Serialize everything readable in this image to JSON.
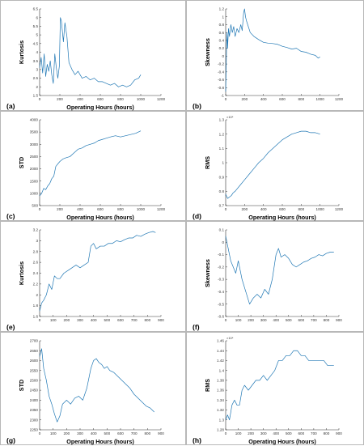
{
  "colors": {
    "line": "#1f77b4",
    "axis": "#333333",
    "border": "#b8b8b8"
  },
  "chart_data": [
    {
      "id": "a",
      "panel_label": "(a)",
      "type": "line",
      "xlabel": "Operating Hours (hours)",
      "ylabel": "Kurtosis",
      "xlim": [
        0,
        1200
      ],
      "ylim": [
        1.5,
        6.5
      ],
      "xticks": [
        "0",
        "200",
        "400",
        "600",
        "800",
        "1000",
        "1200"
      ],
      "yticks": [
        "1.5",
        "2",
        "2.5",
        "3",
        "3.5",
        "4",
        "4.5",
        "5",
        "5.5",
        "6",
        "6.5"
      ],
      "multiplier": "",
      "series": [
        {
          "x": [
            0,
            15,
            30,
            45,
            60,
            75,
            90,
            105,
            120,
            135,
            150,
            165,
            180,
            195,
            205,
            215,
            225,
            235,
            250,
            270,
            290,
            320,
            350,
            380,
            420,
            460,
            500,
            540,
            580,
            620,
            660,
            700,
            740,
            780,
            820,
            860,
            900,
            940,
            980,
            1000
          ],
          "values": [
            3.1,
            3.7,
            2.8,
            3.9,
            2.6,
            3.3,
            2.9,
            3.5,
            2.7,
            2.2,
            3.9,
            3.1,
            2.5,
            3.2,
            6.0,
            5.8,
            5.2,
            4.6,
            5.7,
            4.9,
            3.4,
            3.0,
            2.7,
            2.9,
            2.5,
            2.6,
            2.4,
            2.5,
            2.3,
            2.3,
            2.2,
            2.1,
            2.2,
            2.0,
            2.1,
            2.0,
            2.1,
            2.4,
            2.5,
            2.7
          ]
        }
      ]
    },
    {
      "id": "b",
      "panel_label": "(b)",
      "type": "line",
      "xlabel": "",
      "ylabel": "Skewness",
      "xlim": [
        0,
        1200
      ],
      "ylim": [
        -1,
        1.2
      ],
      "xticks": [
        "0",
        "200",
        "400",
        "600",
        "800",
        "1000",
        "1200"
      ],
      "yticks": [
        "-1",
        "-0.8",
        "-0.6",
        "-0.4",
        "-0.2",
        "0",
        "0.2",
        "0.4",
        "0.6",
        "0.8",
        "1",
        "1.2"
      ],
      "multiplier": "",
      "series": [
        {
          "x": [
            0,
            6,
            10,
            15,
            20,
            30,
            40,
            55,
            70,
            85,
            100,
            120,
            140,
            160,
            175,
            190,
            200,
            210,
            220,
            240,
            260,
            300,
            350,
            400,
            450,
            500,
            550,
            600,
            650,
            700,
            750,
            800,
            850,
            900,
            950,
            980,
            1000
          ],
          "values": [
            -0.9,
            -0.2,
            0.3,
            0.6,
            0.2,
            0.7,
            0.5,
            0.8,
            0.6,
            0.75,
            0.5,
            0.7,
            0.6,
            0.8,
            0.65,
            1.1,
            1.2,
            1.0,
            0.9,
            0.75,
            0.6,
            0.5,
            0.42,
            0.35,
            0.33,
            0.32,
            0.3,
            0.25,
            0.22,
            0.18,
            0.2,
            0.12,
            0.1,
            0.05,
            0.02,
            -0.05,
            -0.02
          ]
        }
      ]
    },
    {
      "id": "c",
      "panel_label": "(c)",
      "type": "line",
      "xlabel": "Operating Hours (hours)",
      "ylabel": "STD",
      "xlim": [
        0,
        1200
      ],
      "ylim": [
        500,
        4000
      ],
      "xticks": [
        "0",
        "200",
        "400",
        "600",
        "800",
        "1000",
        "1200"
      ],
      "yticks": [
        "500",
        "1000",
        "1500",
        "2000",
        "2500",
        "3000",
        "3500",
        "4000"
      ],
      "multiplier": "",
      "series": [
        {
          "x": [
            0,
            20,
            40,
            60,
            80,
            100,
            120,
            140,
            160,
            180,
            200,
            230,
            260,
            300,
            340,
            380,
            420,
            460,
            500,
            540,
            580,
            620,
            660,
            700,
            750,
            800,
            850,
            900,
            950,
            1000
          ],
          "values": [
            900,
            1000,
            1200,
            1150,
            1300,
            1400,
            1600,
            1700,
            2100,
            2200,
            2300,
            2400,
            2450,
            2500,
            2650,
            2800,
            2850,
            2950,
            3000,
            3050,
            3150,
            3200,
            3250,
            3300,
            3350,
            3300,
            3350,
            3400,
            3450,
            3550
          ]
        }
      ]
    },
    {
      "id": "d",
      "panel_label": "(d)",
      "type": "line",
      "xlabel": "Operating Hours (hours)",
      "ylabel": "RMS",
      "xlim": [
        0,
        1200
      ],
      "ylim": [
        0.7,
        1.3
      ],
      "xticks": [
        "0",
        "200",
        "400",
        "600",
        "800",
        "1000",
        "1200"
      ],
      "yticks": [
        "0.7",
        "0.8",
        "0.9",
        "1",
        "1.1",
        "1.2",
        "1.3"
      ],
      "multiplier": "×10⁴",
      "series": [
        {
          "x": [
            0,
            20,
            40,
            60,
            80,
            100,
            150,
            200,
            250,
            300,
            350,
            400,
            450,
            500,
            550,
            600,
            650,
            700,
            750,
            800,
            850,
            900,
            950,
            1000
          ],
          "values": [
            0.78,
            0.75,
            0.76,
            0.77,
            0.79,
            0.8,
            0.84,
            0.88,
            0.92,
            0.96,
            1.0,
            1.03,
            1.07,
            1.1,
            1.13,
            1.16,
            1.18,
            1.2,
            1.21,
            1.22,
            1.22,
            1.21,
            1.21,
            1.2
          ]
        }
      ]
    },
    {
      "id": "e",
      "panel_label": "(e)",
      "type": "line",
      "xlabel": "",
      "ylabel": "Kurtosis",
      "xlim": [
        0,
        900
      ],
      "ylim": [
        1.6,
        3.2
      ],
      "xticks": [
        "0",
        "100",
        "200",
        "300",
        "400",
        "500",
        "600",
        "700",
        "800",
        "900"
      ],
      "yticks": [
        "1.6",
        "1.8",
        "2",
        "2.2",
        "2.4",
        "2.6",
        "2.8",
        "3",
        "3.2"
      ],
      "multiplier": "",
      "series": [
        {
          "x": [
            0,
            15,
            30,
            50,
            70,
            90,
            110,
            130,
            150,
            180,
            210,
            240,
            270,
            300,
            330,
            360,
            380,
            400,
            420,
            450,
            480,
            510,
            540,
            570,
            600,
            630,
            660,
            690,
            720,
            750,
            780,
            810,
            840,
            860
          ],
          "values": [
            1.7,
            1.85,
            1.9,
            2.0,
            2.2,
            2.1,
            2.35,
            2.3,
            2.3,
            2.4,
            2.45,
            2.5,
            2.55,
            2.5,
            2.55,
            2.6,
            2.9,
            2.95,
            2.85,
            2.9,
            2.9,
            2.95,
            2.95,
            3.0,
            2.98,
            3.02,
            3.05,
            3.05,
            3.1,
            3.08,
            3.12,
            3.15,
            3.17,
            3.15
          ]
        }
      ]
    },
    {
      "id": "f",
      "panel_label": "(f)",
      "type": "line",
      "xlabel": "",
      "ylabel": "Skewness",
      "xlim": [
        0,
        900
      ],
      "ylim": [
        -0.6,
        0.1
      ],
      "xticks": [
        "0",
        "100",
        "200",
        "300",
        "400",
        "500",
        "600",
        "700",
        "800",
        "900"
      ],
      "yticks": [
        "-0.6",
        "-0.5",
        "-0.4",
        "-0.3",
        "-0.2",
        "-0.1",
        "0",
        "0.1"
      ],
      "multiplier": "",
      "series": [
        {
          "x": [
            0,
            20,
            40,
            60,
            80,
            100,
            130,
            160,
            190,
            220,
            250,
            280,
            310,
            340,
            370,
            400,
            420,
            440,
            470,
            500,
            530,
            560,
            590,
            620,
            650,
            680,
            710,
            740,
            770,
            800,
            830,
            860
          ],
          "values": [
            0.05,
            -0.05,
            -0.15,
            -0.2,
            -0.25,
            -0.15,
            -0.3,
            -0.4,
            -0.5,
            -0.45,
            -0.42,
            -0.45,
            -0.38,
            -0.42,
            -0.3,
            -0.1,
            -0.05,
            -0.12,
            -0.1,
            -0.13,
            -0.18,
            -0.2,
            -0.18,
            -0.16,
            -0.15,
            -0.13,
            -0.12,
            -0.1,
            -0.11,
            -0.09,
            -0.08,
            -0.08
          ]
        }
      ]
    },
    {
      "id": "g",
      "panel_label": "(g)",
      "type": "line",
      "xlabel": "Operating Hours (hours)",
      "ylabel": "STD",
      "xlim": [
        0,
        900
      ],
      "ylim": [
        2250,
        2700
      ],
      "xticks": [
        "0",
        "100",
        "200",
        "300",
        "400",
        "500",
        "600",
        "700",
        "800",
        "900"
      ],
      "yticks": [
        "2250",
        "2300",
        "2350",
        "2400",
        "2450",
        "2500",
        "2550",
        "2600",
        "2650",
        "2700"
      ],
      "multiplier": "",
      "series": [
        {
          "x": [
            0,
            15,
            30,
            50,
            70,
            90,
            110,
            130,
            150,
            170,
            200,
            230,
            260,
            290,
            320,
            350,
            380,
            400,
            420,
            440,
            460,
            480,
            500,
            520,
            550,
            580,
            610,
            640,
            670,
            700,
            730,
            760,
            790,
            820,
            850
          ],
          "values": [
            2620,
            2660,
            2560,
            2500,
            2420,
            2380,
            2330,
            2290,
            2320,
            2380,
            2400,
            2380,
            2410,
            2420,
            2400,
            2460,
            2560,
            2600,
            2610,
            2590,
            2580,
            2560,
            2570,
            2550,
            2540,
            2520,
            2500,
            2480,
            2460,
            2430,
            2410,
            2390,
            2370,
            2360,
            2340
          ]
        }
      ]
    },
    {
      "id": "h",
      "panel_label": "(h)",
      "type": "line",
      "xlabel": "Operating Hours (hours)",
      "ylabel": "RMS",
      "xlim": [
        0,
        900
      ],
      "ylim": [
        1.28,
        1.46
      ],
      "xticks": [
        "0",
        "100",
        "200",
        "300",
        "400",
        "500",
        "600",
        "700",
        "800",
        "900"
      ],
      "yticks": [
        "1.28",
        "1.3",
        "1.32",
        "1.34",
        "1.36",
        "1.38",
        "1.4",
        "1.42",
        "1.44",
        "1.46"
      ],
      "multiplier": "×10⁴",
      "series": [
        {
          "x": [
            0,
            15,
            30,
            50,
            70,
            90,
            110,
            130,
            150,
            180,
            210,
            240,
            270,
            300,
            330,
            360,
            390,
            420,
            450,
            480,
            510,
            540,
            570,
            600,
            630,
            660,
            690,
            720,
            750,
            780,
            810,
            840,
            860
          ],
          "values": [
            1.3,
            1.31,
            1.3,
            1.33,
            1.34,
            1.33,
            1.33,
            1.36,
            1.37,
            1.36,
            1.37,
            1.38,
            1.38,
            1.39,
            1.38,
            1.39,
            1.4,
            1.42,
            1.42,
            1.43,
            1.43,
            1.44,
            1.44,
            1.43,
            1.43,
            1.42,
            1.42,
            1.42,
            1.42,
            1.42,
            1.41,
            1.41,
            1.41
          ]
        }
      ]
    }
  ]
}
